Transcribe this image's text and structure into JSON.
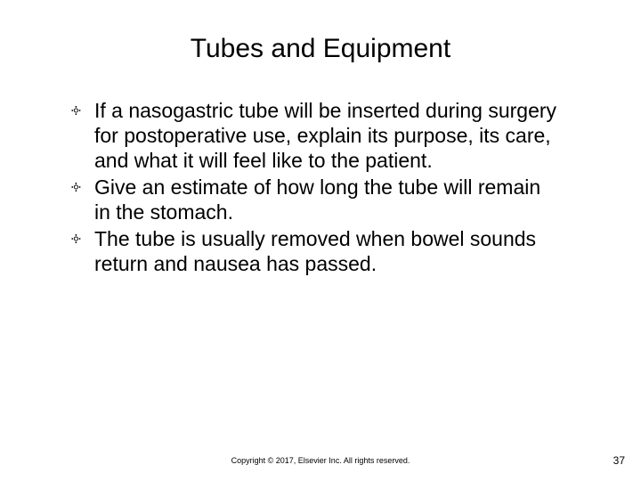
{
  "title": "Tubes and Equipment",
  "bullets": [
    "If a nasogastric tube will be inserted during surgery for postoperative use, explain its purpose, its care, and what it will feel like to the patient.",
    "Give an estimate of how long the tube will remain in the stomach.",
    "The tube is usually removed when bowel sounds return and nausea has passed."
  ],
  "bullet_symbol": "༓",
  "footer": "Copyright © 2017, Elsevier Inc. All rights reserved.",
  "page_number": "37",
  "colors": {
    "background": "#ffffff",
    "text": "#000000"
  },
  "fonts": {
    "title_size": 30,
    "body_size": 23,
    "footer_size": 9,
    "pagenum_size": 12
  }
}
